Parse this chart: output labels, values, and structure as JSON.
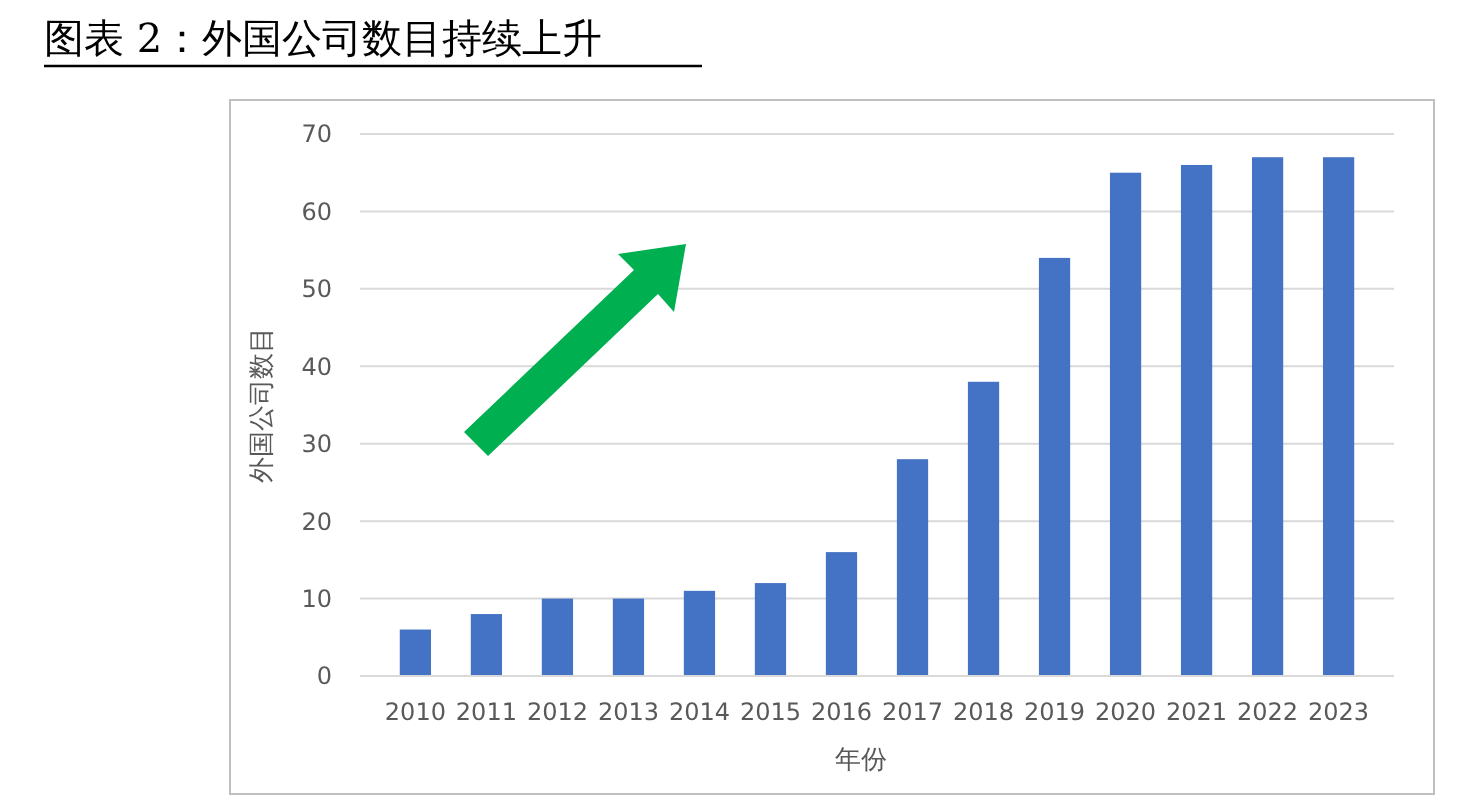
{
  "chart_data": {
    "type": "bar",
    "title": "图表 2：外国公司数目持续上升",
    "xlabel": "年份",
    "ylabel": "外国公司数目",
    "categories": [
      "2010",
      "2011",
      "2012",
      "2013",
      "2014",
      "2015",
      "2016",
      "2017",
      "2018",
      "2019",
      "2020",
      "2021",
      "2022",
      "2023"
    ],
    "values": [
      6,
      8,
      10,
      10,
      11,
      12,
      16,
      28,
      38,
      54,
      65,
      66,
      67,
      67
    ],
    "color": "#4472c4",
    "ylim": [
      0,
      70
    ],
    "yticks": [
      0,
      10,
      20,
      30,
      40,
      50,
      60,
      70
    ],
    "grid": "y"
  }
}
